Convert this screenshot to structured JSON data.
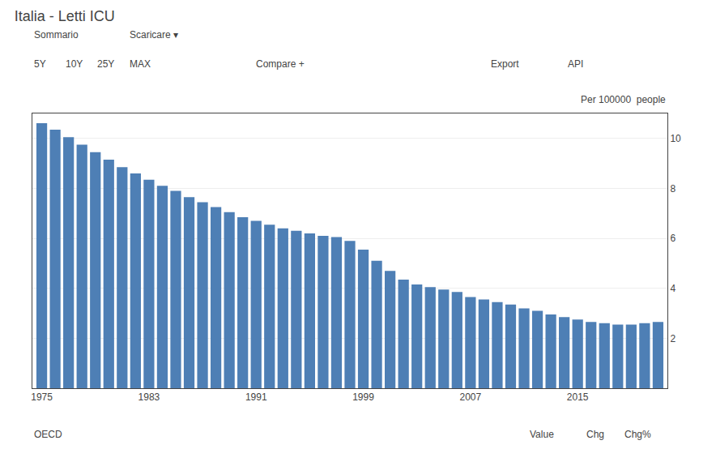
{
  "chart_data": {
    "type": "bar",
    "title": "Italia - Letti ICU",
    "x": [
      1975,
      1976,
      1977,
      1978,
      1979,
      1980,
      1981,
      1982,
      1983,
      1984,
      1985,
      1986,
      1987,
      1988,
      1989,
      1990,
      1991,
      1992,
      1993,
      1994,
      1995,
      1996,
      1997,
      1998,
      1999,
      2000,
      2001,
      2002,
      2003,
      2004,
      2005,
      2006,
      2007,
      2008,
      2009,
      2010,
      2011,
      2012,
      2013,
      2014,
      2015,
      2016,
      2017,
      2018,
      2019,
      2020,
      2021
    ],
    "values": [
      10.61,
      10.35,
      10.05,
      9.75,
      9.45,
      9.15,
      8.85,
      8.6,
      8.35,
      8.1,
      7.9,
      7.65,
      7.45,
      7.25,
      7.05,
      6.85,
      6.7,
      6.55,
      6.4,
      6.3,
      6.2,
      6.1,
      6.05,
      5.9,
      5.55,
      5.1,
      4.7,
      4.35,
      4.15,
      4.05,
      3.95,
      3.85,
      3.65,
      3.55,
      3.45,
      3.35,
      3.2,
      3.1,
      2.95,
      2.85,
      2.75,
      2.65,
      2.6,
      2.55,
      2.55,
      2.6,
      2.65
    ],
    "color": "#4e7fb5",
    "xlim": [
      1974.3,
      2021.7
    ],
    "xticks": [
      1975,
      1983,
      1991,
      1999,
      2007,
      2015
    ],
    "ylim": [
      0,
      11
    ],
    "yticks": [
      2,
      4,
      6,
      8,
      10
    ],
    "grid": true,
    "annotations": [
      "Sommario",
      "Scaricare ▾",
      "5Y",
      "10Y",
      "25Y",
      "MAX",
      "Compare +",
      "Export",
      "API",
      "Per 100000  people",
      "OECD",
      "Value",
      "Chg",
      "Chg%"
    ]
  }
}
